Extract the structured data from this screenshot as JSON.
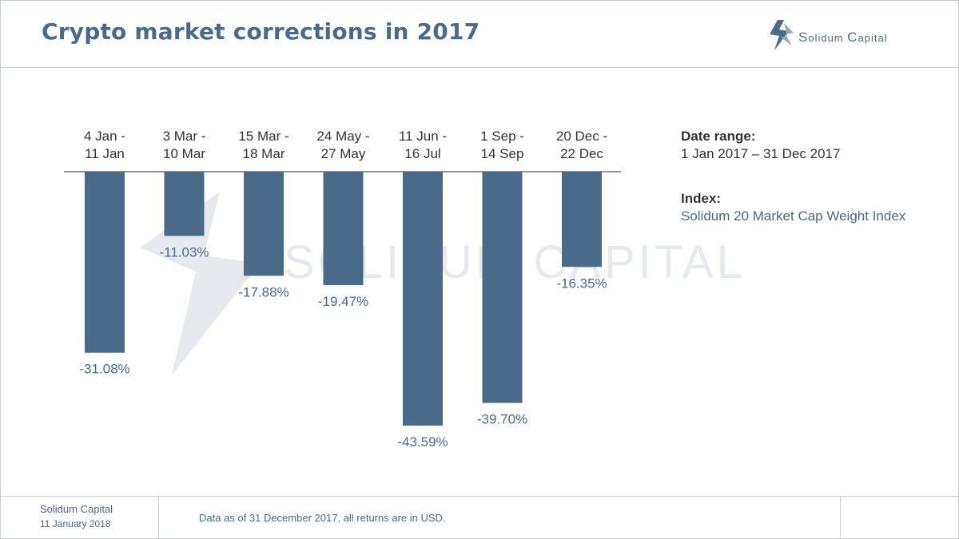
{
  "header": {
    "title": "Crypto market corrections in 2017",
    "logo_text_a": "S",
    "logo_text_b": "olidum ",
    "logo_text_c": "C",
    "logo_text_d": "apital"
  },
  "watermark_text": "SOLIDUM CAPITAL",
  "chart_data": {
    "type": "bar",
    "categories": [
      [
        "4 Jan -",
        "11 Jan"
      ],
      [
        "3 Mar -",
        "10 Mar"
      ],
      [
        "15 Mar -",
        "18 Mar"
      ],
      [
        "24 May -",
        "27 May"
      ],
      [
        "11 Jun -",
        "16 Jul"
      ],
      [
        "1 Sep -",
        "14 Sep"
      ],
      [
        "20 Dec -",
        "22 Dec"
      ]
    ],
    "values": [
      -31.08,
      -11.03,
      -17.88,
      -19.47,
      -43.59,
      -39.7,
      -16.35
    ],
    "data_labels": [
      "-31.08%",
      "-11.03%",
      "-17.88%",
      "-19.47%",
      "-43.59%",
      "-39.70%",
      "-16.35%"
    ],
    "title": "Crypto market corrections in 2017",
    "ylim": [
      -43.59,
      0
    ],
    "grid": false,
    "bar_color": "#4a6a8a",
    "label_color": "#4a6a8a"
  },
  "info": {
    "date_range_label": "Date range:",
    "date_range_value": "1 Jan 2017 – 31 Dec 2017",
    "index_label": "Index:",
    "index_value": "Solidum 20 Market Cap Weight Index"
  },
  "footer": {
    "company": "Solidum Capital",
    "date": "11 January 2018",
    "note": "Data as of 31 December 2017, all returns are in USD."
  }
}
